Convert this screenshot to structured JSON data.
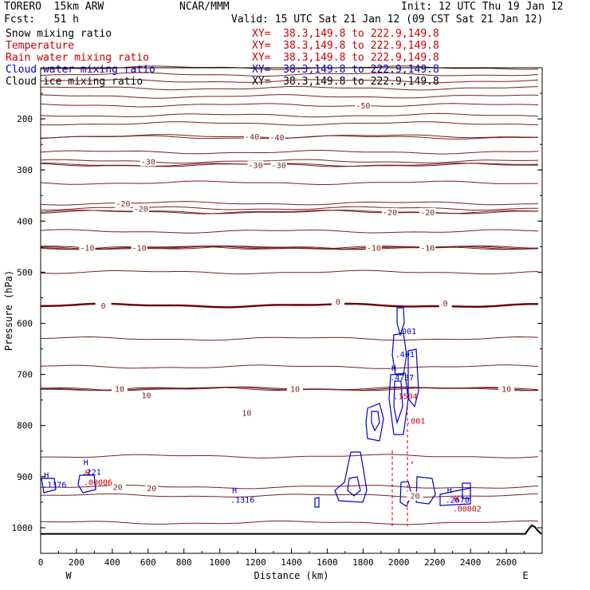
{
  "header": {
    "model": "TORERO  15km ARW",
    "center": "NCAR/MMM",
    "init": "Init: 12 UTC Thu 19 Jan 12",
    "fcst": "Fcst:   51 h",
    "valid": "Valid: 15 UTC Sat 21 Jan 12 (09 CST Sat 21 Jan 12)"
  },
  "fields": [
    {
      "name": "Snow mixing ratio",
      "color": "#000000",
      "xy": ""
    },
    {
      "name": "Temperature",
      "color": "#cc0000",
      "xy": "XY=  38.3,149.8 to 222.9,149.8"
    },
    {
      "name": "Rain water mixing ratio",
      "color": "#cc0000",
      "xy": "XY=  38.3,149.8 to 222.9,149.8"
    },
    {
      "name": "Cloud water mixing ratio",
      "color": "#0000cc",
      "xy": "XY=  38.3,149.8 to 222.9,149.8"
    },
    {
      "name": "Cloud ice mixing ratio",
      "color": "#000000",
      "xy": "XY=  38.3,149.8 to 222.9,149.8"
    }
  ],
  "first_xy": "XY=  38.3,149.8 to 222.9,149.8",
  "colors": {
    "temperature": "#7a1f1f",
    "zero_isotherm": "#6a0000",
    "cloud_water": "#0000cc",
    "rain": "#cc0000",
    "terrain": "#000000"
  },
  "chart_data": {
    "type": "line",
    "title": "",
    "xlabel": "Distance (km)",
    "ylabel": "Pressure (hPa)",
    "xlim": [
      0,
      2800
    ],
    "ylim": [
      1050,
      100
    ],
    "x_ticks": [
      0,
      200,
      400,
      600,
      800,
      1000,
      1200,
      1400,
      1600,
      1800,
      2000,
      2200,
      2400,
      2600
    ],
    "y_ticks": [
      200,
      300,
      400,
      500,
      600,
      700,
      800,
      900,
      1000
    ],
    "x_end_labels": {
      "left": "W",
      "right": "E"
    },
    "isotherms": [
      {
        "p": 100
      },
      {
        "p": 113
      },
      {
        "p": 126
      },
      {
        "p": 140
      },
      {
        "p": 156
      },
      {
        "p": 173,
        "label": "-50",
        "lx": 1800
      },
      {
        "p": 193
      },
      {
        "p": 209
      },
      {
        "p": 234,
        "label": "-40",
        "lx": 1180
      },
      {
        "p": 236,
        "label": "-40",
        "lx": 1320
      },
      {
        "p": 265
      },
      {
        "p": 283,
        "label": "-30",
        "lx": 600
      },
      {
        "p": 290,
        "label": "-30",
        "lx": 1200
      },
      {
        "p": 290,
        "label": "-30",
        "lx": 1330
      },
      {
        "p": 325
      },
      {
        "p": 365,
        "label": "-20",
        "lx": 460
      },
      {
        "p": 375,
        "label": "-20",
        "lx": 560
      },
      {
        "p": 382,
        "label": "-20",
        "lx": 1950
      },
      {
        "p": 382,
        "label": "-20",
        "lx": 2160
      },
      {
        "p": 420
      },
      {
        "p": 452,
        "label": "-10",
        "lx": 260
      },
      {
        "p": 452,
        "label": "-10",
        "lx": 550
      },
      {
        "p": 452,
        "label": "-10",
        "lx": 1860
      },
      {
        "p": 452,
        "label": "-10",
        "lx": 2160
      },
      {
        "p": 500
      },
      {
        "p": 565,
        "label": "0",
        "lx": 350,
        "bold": true
      },
      {
        "p": 630
      },
      {
        "p": 685
      },
      {
        "p": 728,
        "label": "10",
        "lx": 440
      },
      {
        "p": 728,
        "label": "10",
        "lx": 1420
      },
      {
        "p": 728,
        "label": "10",
        "lx": 2600
      },
      {
        "p": 860
      },
      {
        "p": 920,
        "label": "20",
        "lx": 430
      },
      {
        "p": 937,
        "label": "20",
        "lx": 2090
      },
      {
        "p": 990
      }
    ],
    "extra_labels": [
      {
        "text": "0",
        "x": 1660,
        "p": 557,
        "color": "temperature"
      },
      {
        "text": "0",
        "x": 2260,
        "p": 560,
        "color": "temperature"
      },
      {
        "text": "10",
        "x": 1150,
        "p": 775,
        "color": "temperature"
      },
      {
        "text": "10",
        "x": 590,
        "p": 740,
        "color": "temperature"
      },
      {
        "text": "20",
        "x": 620,
        "p": 922,
        "color": "temperature"
      }
    ],
    "max_markers": [
      {
        "symbol": "H",
        "value": ".1376",
        "x": 10,
        "p": 915,
        "color": "cloud_water"
      },
      {
        "symbol": "H",
        "value": ".221",
        "x": 230,
        "p": 890,
        "color": "cloud_water"
      },
      {
        "symbol": "H",
        "value": ".00006",
        "x": 240,
        "p": 910,
        "color": "rain"
      },
      {
        "symbol": "H",
        "value": ".1316",
        "x": 1060,
        "p": 945,
        "color": "cloud_water"
      },
      {
        "symbol": "H",
        "value": ".2670",
        "x": 2260,
        "p": 945,
        "color": "cloud_water"
      },
      {
        "symbol": "H",
        "value": ".00002",
        "x": 2300,
        "p": 962,
        "color": "rain"
      },
      {
        "symbol": "",
        "value": ".001",
        "x": 1990,
        "p": 615,
        "color": "cloud_water"
      },
      {
        "symbol": "",
        "value": ".401",
        "x": 1980,
        "p": 660,
        "color": "cloud_water"
      },
      {
        "symbol": "H",
        "value": ".4737",
        "x": 1950,
        "p": 705,
        "color": "cloud_water"
      },
      {
        "symbol": "",
        "value": ".1504",
        "x": 1970,
        "p": 742,
        "color": "rain"
      },
      {
        "symbol": "",
        "value": ".001",
        "x": 2040,
        "p": 790,
        "color": "rain"
      }
    ]
  }
}
